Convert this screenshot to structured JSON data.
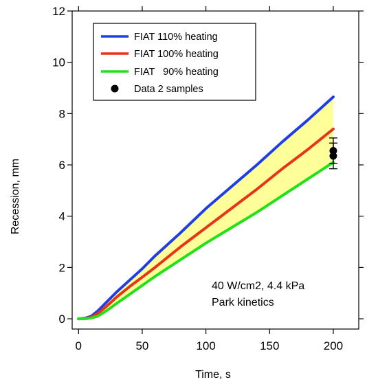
{
  "chart_data": {
    "type": "line",
    "xlabel": "Time, s",
    "ylabel": "Recession, mm",
    "xlim": [
      -5,
      220
    ],
    "ylim": [
      -0.4,
      12
    ],
    "xticks": [
      0,
      50,
      100,
      150,
      200
    ],
    "yticks": [
      0,
      2,
      4,
      6,
      8,
      10,
      12
    ],
    "grid": false,
    "legend_position": "top-left",
    "series": [
      {
        "name": "FIAT 110% heating",
        "color": "#1f3ee6",
        "x": [
          0,
          5,
          10,
          15,
          20,
          25,
          30,
          40,
          50,
          60,
          80,
          100,
          120,
          140,
          160,
          180,
          200
        ],
        "y": [
          0,
          0.02,
          0.1,
          0.3,
          0.55,
          0.8,
          1.05,
          1.5,
          1.95,
          2.45,
          3.35,
          4.3,
          5.15,
          6.0,
          6.9,
          7.75,
          8.65
        ]
      },
      {
        "name": "FIAT 100% heating",
        "color": "#e83418",
        "x": [
          0,
          5,
          10,
          15,
          20,
          25,
          30,
          40,
          50,
          60,
          80,
          100,
          120,
          140,
          160,
          180,
          200
        ],
        "y": [
          0,
          0.01,
          0.06,
          0.2,
          0.4,
          0.62,
          0.85,
          1.25,
          1.62,
          2.0,
          2.8,
          3.55,
          4.3,
          5.05,
          5.85,
          6.6,
          7.4
        ]
      },
      {
        "name": "FIAT   90% heating",
        "color": "#22e11a",
        "x": [
          0,
          5,
          10,
          15,
          20,
          25,
          30,
          40,
          50,
          60,
          80,
          100,
          120,
          140,
          160,
          180,
          200
        ],
        "y": [
          0,
          0.0,
          0.03,
          0.1,
          0.25,
          0.42,
          0.6,
          0.95,
          1.3,
          1.65,
          2.3,
          2.95,
          3.55,
          4.15,
          4.8,
          5.45,
          6.1
        ]
      }
    ],
    "data_points": {
      "name": "Data 2 samples",
      "color": "#000000",
      "points": [
        {
          "x": 200,
          "y": 6.55,
          "err": 0.5
        },
        {
          "x": 200,
          "y": 6.35,
          "err": 0.5
        }
      ]
    },
    "band": {
      "lower": "FIAT   90% heating",
      "upper": "FIAT 110% heating",
      "color": "#ffff99"
    },
    "annotations": [
      "40 W/cm2, 4.4 kPa",
      "Park kinetics"
    ]
  }
}
